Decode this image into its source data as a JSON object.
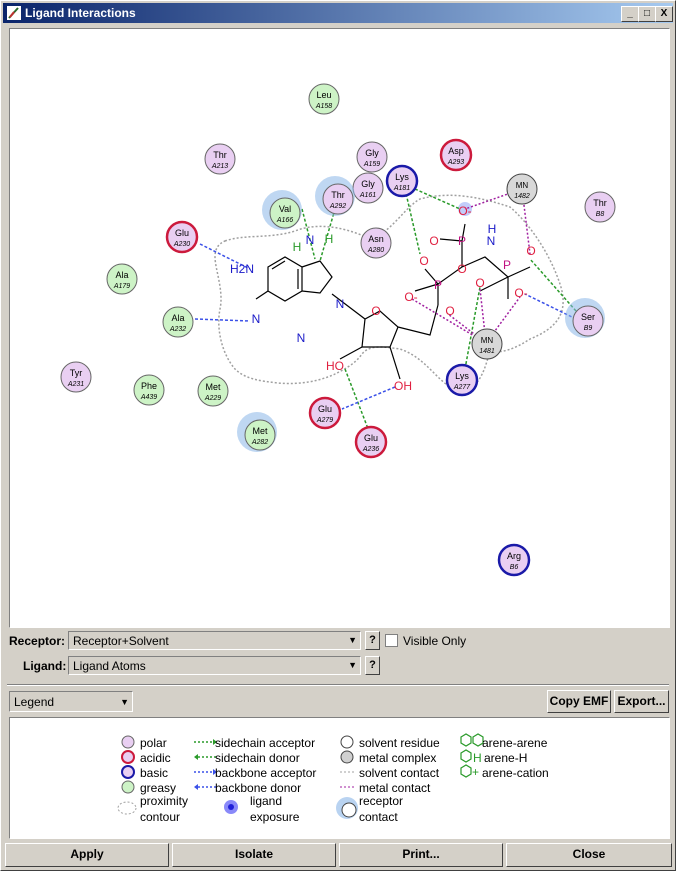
{
  "window": {
    "title": "Ligand Interactions"
  },
  "titlebar_buttons": [
    "_",
    "□",
    "X"
  ],
  "controls": {
    "receptor_label": "Receptor:",
    "receptor_value": "Receptor+Solvent",
    "ligand_label": "Ligand:",
    "ligand_value": "Ligand Atoms",
    "help": "?",
    "visible_only": "Visible Only",
    "legend_select": "Legend",
    "copy_emf": "Copy EMF",
    "export": "Export..."
  },
  "footer": {
    "apply": "Apply",
    "isolate": "Isolate",
    "print": "Print...",
    "close": "Close"
  },
  "colors": {
    "polar": "#e9cff2",
    "greasy": "#cdf3c6",
    "acidic": "#cc1a3c",
    "basic": "#1a1aa8",
    "proximity": "#a0a0a0",
    "exposure": "#8ab6e8"
  },
  "residues": [
    {
      "name": "Leu",
      "id": "A158",
      "type": "greasy"
    },
    {
      "name": "Thr",
      "id": "A213",
      "type": "polar"
    },
    {
      "name": "Gly",
      "id": "A159",
      "type": "polar"
    },
    {
      "name": "Asp",
      "id": "A293",
      "type": "acidic"
    },
    {
      "name": "Lys",
      "id": "A181",
      "type": "basic"
    },
    {
      "name": "Gly",
      "id": "A161",
      "type": "polar"
    },
    {
      "name": "Thr",
      "id": "A292",
      "type": "polar"
    },
    {
      "name": "Val",
      "id": "A166",
      "type": "greasy"
    },
    {
      "name": "MN",
      "id": "1482",
      "type": "metal"
    },
    {
      "name": "Thr",
      "id": "B8",
      "type": "polar"
    },
    {
      "name": "Glu",
      "id": "A230",
      "type": "acidic"
    },
    {
      "name": "Asn",
      "id": "A280",
      "type": "polar"
    },
    {
      "name": "Ala",
      "id": "A179",
      "type": "greasy"
    },
    {
      "name": "Ala",
      "id": "A232",
      "type": "greasy"
    },
    {
      "name": "Ser",
      "id": "B9",
      "type": "polar"
    },
    {
      "name": "MN",
      "id": "1481",
      "type": "metal"
    },
    {
      "name": "Tyr",
      "id": "A231",
      "type": "polar"
    },
    {
      "name": "Phe",
      "id": "A439",
      "type": "greasy"
    },
    {
      "name": "Met",
      "id": "A229",
      "type": "greasy"
    },
    {
      "name": "Lys",
      "id": "A277",
      "type": "basic"
    },
    {
      "name": "Glu",
      "id": "A279",
      "type": "acidic"
    },
    {
      "name": "Met",
      "id": "A282",
      "type": "greasy"
    },
    {
      "name": "Glu",
      "id": "A236",
      "type": "acidic"
    },
    {
      "name": "Arg",
      "id": "B6",
      "type": "basic"
    }
  ],
  "atoms": [
    "H2N",
    "N",
    "N",
    "N",
    "N",
    "H",
    "H",
    "O",
    "HO",
    "OH",
    "O",
    "P",
    "O-",
    "O",
    "O",
    "P",
    "O-",
    "O",
    "N",
    "H",
    "P",
    "O",
    "O-"
  ],
  "legend": {
    "polar": "polar",
    "acidic": "acidic",
    "basic": "basic",
    "greasy": "greasy",
    "proximity": "proximity",
    "contour": "contour",
    "sc_acceptor": "sidechain acceptor",
    "sc_donor": "sidechain donor",
    "bb_acceptor": "backbone acceptor",
    "bb_donor": "backbone donor",
    "ligand": "ligand",
    "exposure": "exposure",
    "solvent_residue": "solvent residue",
    "metal_complex": "metal complex",
    "solvent_contact": "solvent contact",
    "metal_contact": "metal contact",
    "receptor": "receptor",
    "contact": "contact",
    "arene_arene": "arene-arene",
    "arene_h": "arene-H",
    "arene_cation": "arene-cation"
  }
}
